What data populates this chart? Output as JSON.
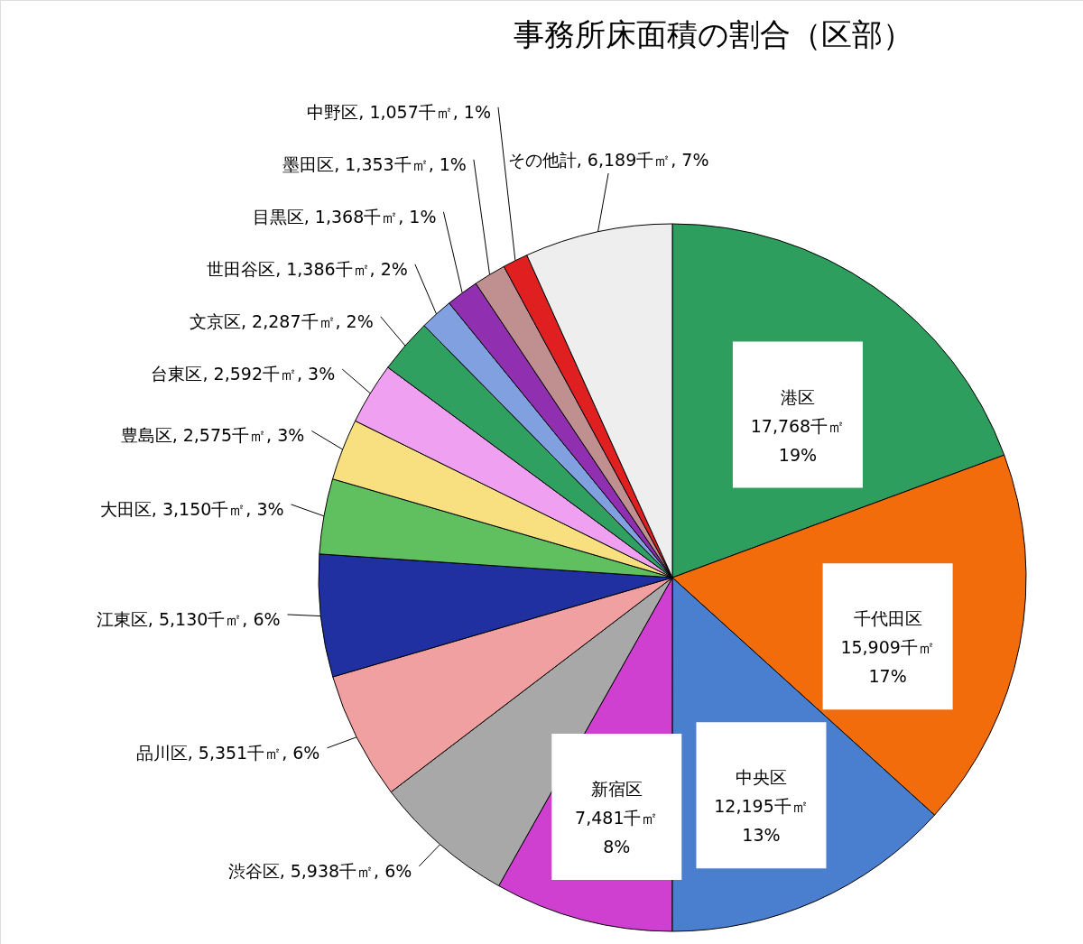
{
  "chart_data": {
    "type": "pie",
    "title": "事務所床面積の割合（区部）",
    "categories": [
      "港区",
      "千代田区",
      "中央区",
      "新宿区",
      "渋谷区",
      "品川区",
      "江東区",
      "大田区",
      "豊島区",
      "台東区",
      "文京区",
      "世田谷区",
      "目黒区",
      "墨田区",
      "中野区",
      "その他計"
    ],
    "values": [
      17768,
      15909,
      12195,
      7481,
      5938,
      5351,
      5130,
      3150,
      2575,
      2592,
      2287,
      1386,
      1368,
      1353,
      1057,
      6189
    ],
    "value_labels": [
      "17,768千㎡\n19%",
      "15,909千㎡\n17%",
      "12,195千㎡\n13%",
      "7,481千㎡\n8%",
      "5,938千㎡, 6%",
      "5,351千㎡, 6%",
      "5,130千㎡, 6%",
      "3,150千㎡, 3%",
      "2,575千㎡, 3%",
      "2,592千㎡, 3%",
      "2,287千㎡, 2%",
      "1,386千㎡, 2%",
      "1,368千㎡, 1%",
      "1,353千㎡, 1%",
      "1,057千㎡, 1%",
      "6,189千㎡, 7%"
    ],
    "colors": [
      "#2e9e5e",
      "#f26c0c",
      "#4a7fd0",
      "#d040d0",
      "#a8a8a8",
      "#f0a0a0",
      "#2030a0",
      "#60c060",
      "#f8e080",
      "#f0a0f0",
      "#30a060",
      "#80a0e0",
      "#9030b0",
      "#c09090",
      "#e02020",
      "#eeeeee"
    ]
  }
}
